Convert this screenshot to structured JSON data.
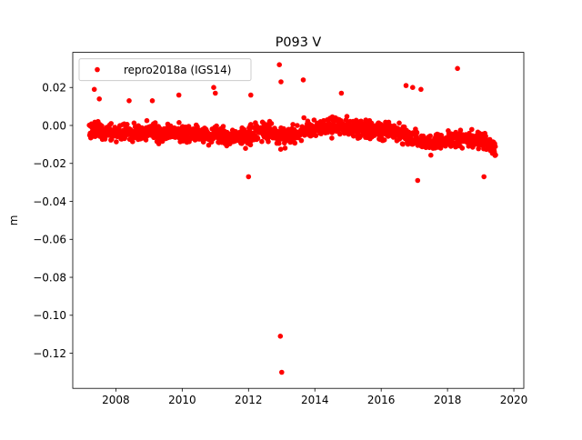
{
  "chart_data": {
    "type": "scatter",
    "title": "P093 V",
    "xlabel": "",
    "ylabel": "m",
    "xlim": [
      2006.7,
      2020.3
    ],
    "ylim": [
      -0.1385,
      0.0385
    ],
    "xticks": [
      2008,
      2010,
      2012,
      2014,
      2016,
      2018,
      2020
    ],
    "xtick_labels": [
      "2008",
      "2010",
      "2012",
      "2014",
      "2016",
      "2018",
      "2020"
    ],
    "yticks": [
      0.02,
      0.0,
      -0.02,
      -0.04,
      -0.06,
      -0.08,
      -0.1,
      -0.12
    ],
    "ytick_labels": [
      "0.02",
      "0.00",
      "−0.02",
      "−0.04",
      "−0.06",
      "−0.08",
      "−0.10",
      "−0.12"
    ],
    "grid": false,
    "legend_position": "upper-left",
    "series": [
      {
        "name": "repro2018a (IGS14)",
        "color": "#ff0000",
        "marker": "circle",
        "x_start": 2007.2,
        "x_end": 2019.45,
        "trend": [
          [
            2007.2,
            -0.002
          ],
          [
            2008.0,
            -0.004
          ],
          [
            2009.0,
            -0.004
          ],
          [
            2010.0,
            -0.004
          ],
          [
            2011.0,
            -0.005
          ],
          [
            2011.5,
            -0.006
          ],
          [
            2012.0,
            -0.005
          ],
          [
            2012.5,
            -0.003
          ],
          [
            2013.0,
            -0.006
          ],
          [
            2013.5,
            -0.004
          ],
          [
            2014.0,
            -0.002
          ],
          [
            2014.5,
            0.0
          ],
          [
            2015.0,
            -0.001
          ],
          [
            2015.5,
            -0.002
          ],
          [
            2016.0,
            -0.003
          ],
          [
            2016.5,
            -0.004
          ],
          [
            2017.0,
            -0.007
          ],
          [
            2017.5,
            -0.01
          ],
          [
            2018.0,
            -0.008
          ],
          [
            2018.5,
            -0.007
          ],
          [
            2019.0,
            -0.008
          ],
          [
            2019.45,
            -0.012
          ]
        ],
        "scatter_spread": 0.0045,
        "outliers": [
          {
            "x": 2007.35,
            "y": 0.019
          },
          {
            "x": 2007.5,
            "y": 0.014
          },
          {
            "x": 2008.4,
            "y": 0.013
          },
          {
            "x": 2009.1,
            "y": 0.013
          },
          {
            "x": 2009.9,
            "y": 0.016
          },
          {
            "x": 2010.95,
            "y": 0.02
          },
          {
            "x": 2011.0,
            "y": 0.017
          },
          {
            "x": 2012.0,
            "y": -0.027
          },
          {
            "x": 2012.07,
            "y": 0.016
          },
          {
            "x": 2012.93,
            "y": 0.032
          },
          {
            "x": 2012.98,
            "y": 0.023
          },
          {
            "x": 2012.96,
            "y": -0.111
          },
          {
            "x": 2013.0,
            "y": -0.13
          },
          {
            "x": 2013.65,
            "y": 0.024
          },
          {
            "x": 2014.8,
            "y": 0.017
          },
          {
            "x": 2016.75,
            "y": 0.021
          },
          {
            "x": 2016.95,
            "y": 0.02
          },
          {
            "x": 2017.2,
            "y": 0.019
          },
          {
            "x": 2017.1,
            "y": -0.029
          },
          {
            "x": 2018.3,
            "y": 0.03
          },
          {
            "x": 2019.1,
            "y": -0.027
          }
        ]
      }
    ]
  }
}
